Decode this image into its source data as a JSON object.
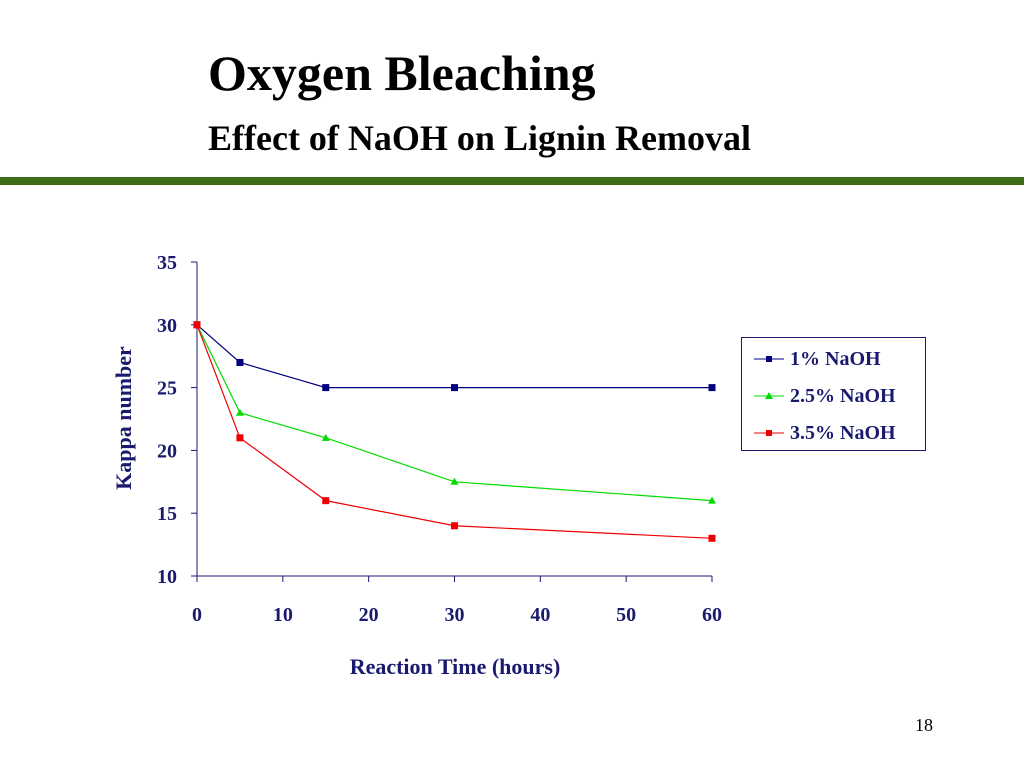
{
  "slide": {
    "title": "Oxygen Bleaching",
    "subtitle": "Effect of NaOH on Lignin Removal",
    "page_number": "18",
    "rule_color": "#3d6b16"
  },
  "chart_data": {
    "type": "line",
    "title": "",
    "xlabel": "Reaction Time (hours)",
    "ylabel": "Kappa number",
    "xlim": [
      0,
      60
    ],
    "ylim": [
      10,
      35
    ],
    "x_ticks": [
      "0",
      "10",
      "20",
      "30",
      "40",
      "50",
      "60"
    ],
    "y_ticks": [
      "10",
      "15",
      "20",
      "25",
      "30",
      "35"
    ],
    "legend_position": "right",
    "series": [
      {
        "name": "1% NaOH",
        "color": "#000080",
        "marker": "square",
        "x": [
          0,
          5,
          15,
          30,
          60
        ],
        "y": [
          30,
          27,
          25,
          25,
          25
        ]
      },
      {
        "name": "2.5% NaOH",
        "color": "#00dd00",
        "marker": "triangle",
        "x": [
          0,
          5,
          15,
          30,
          60
        ],
        "y": [
          30,
          23,
          21,
          17.5,
          16
        ]
      },
      {
        "name": "3.5% NaOH",
        "color": "#ee0000",
        "marker": "square",
        "x": [
          0,
          5,
          15,
          30,
          60
        ],
        "y": [
          30,
          21,
          16,
          14,
          13
        ]
      }
    ]
  }
}
